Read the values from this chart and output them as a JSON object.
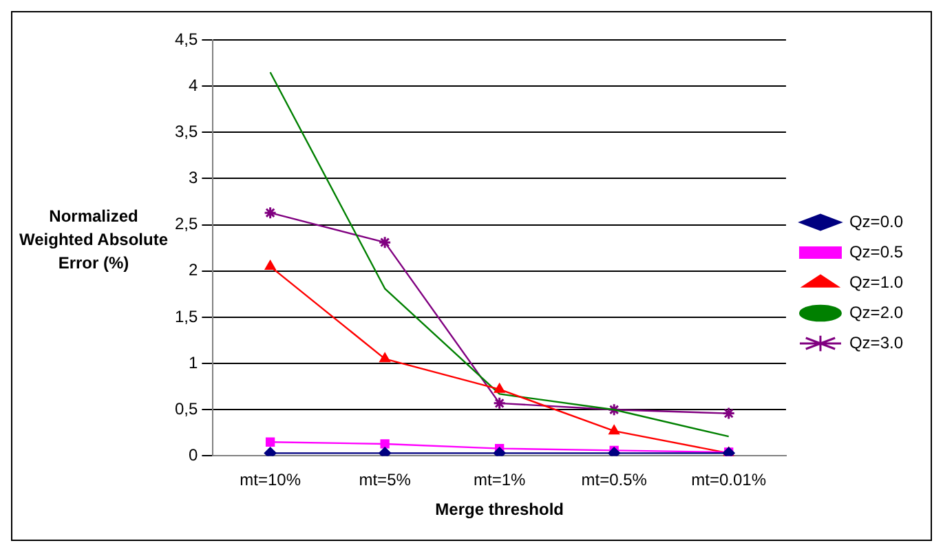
{
  "chart_data": {
    "type": "line",
    "xlabel": "Merge threshold",
    "ylabel": "Normalized Weighted Absolute Error (%)",
    "categories": [
      "mt=10%",
      "mt=5%",
      "mt=1%",
      "mt=0.5%",
      "mt=0.01%"
    ],
    "series": [
      {
        "name": "Qz=0.0",
        "color": "#000080",
        "marker": "diamond",
        "values": [
          0.03,
          0.03,
          0.03,
          0.03,
          0.03
        ]
      },
      {
        "name": "Qz=0.5",
        "color": "#ff00ff",
        "marker": "square",
        "values": [
          0.15,
          0.13,
          0.08,
          0.06,
          0.04
        ]
      },
      {
        "name": "Qz=1.0",
        "color": "#ff0000",
        "marker": "triangle",
        "values": [
          2.05,
          1.05,
          0.72,
          0.27,
          0.03
        ]
      },
      {
        "name": "Qz=2.0",
        "color": "#008000",
        "marker": "none",
        "values": [
          4.15,
          1.81,
          0.67,
          0.5,
          0.21
        ]
      },
      {
        "name": "Qz=3.0",
        "color": "#800080",
        "marker": "cross",
        "values": [
          2.63,
          2.31,
          0.57,
          0.5,
          0.46
        ]
      }
    ],
    "ylim": [
      0,
      4.5
    ],
    "yticks": [
      0,
      {
        "value": 0.5,
        "label": "0,5"
      },
      1,
      {
        "value": 1.5,
        "label": "1,5"
      },
      2,
      {
        "value": 2.5,
        "label": "2,5"
      },
      3,
      {
        "value": 3.5,
        "label": "3,5"
      },
      4,
      {
        "value": 4.5,
        "label": "4,5"
      }
    ],
    "grid": "y",
    "legend": "right"
  }
}
